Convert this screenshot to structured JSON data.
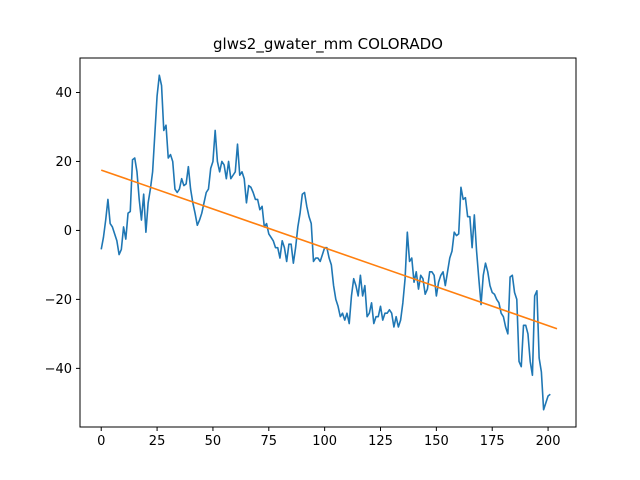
{
  "chart_data": {
    "type": "line",
    "title": "glws2_gwater_mm COLORADO",
    "xlabel": "",
    "ylabel": "",
    "xlim": [
      -9.5,
      212.5
    ],
    "ylim": [
      -57,
      50
    ],
    "xticks": [
      0,
      25,
      50,
      75,
      100,
      125,
      150,
      175,
      200
    ],
    "yticks": [
      -40,
      -20,
      0,
      20,
      40
    ],
    "xtick_labels": [
      "0",
      "25",
      "50",
      "75",
      "100",
      "125",
      "150",
      "175",
      "200"
    ],
    "ytick_labels": [
      "−40",
      "−20",
      "0",
      "20",
      "40"
    ],
    "grid": false,
    "series": [
      {
        "color": "#1f77b4",
        "points": [
          [
            0,
            -5.5
          ],
          [
            1,
            -2
          ],
          [
            2,
            3
          ],
          [
            3,
            9
          ],
          [
            4,
            2
          ],
          [
            5,
            1
          ],
          [
            6,
            -1
          ],
          [
            7,
            -3
          ],
          [
            8,
            -7
          ],
          [
            9,
            -5.5
          ],
          [
            10,
            1
          ],
          [
            11,
            -2.5
          ],
          [
            12,
            5
          ],
          [
            13,
            5.5
          ],
          [
            14,
            20.5
          ],
          [
            15,
            21
          ],
          [
            16,
            17
          ],
          [
            17,
            9
          ],
          [
            18,
            3
          ],
          [
            19,
            10.5
          ],
          [
            20,
            -0.5
          ],
          [
            21,
            8
          ],
          [
            22,
            12
          ],
          [
            23,
            17
          ],
          [
            24,
            28
          ],
          [
            25,
            39
          ],
          [
            26,
            45
          ],
          [
            27,
            42
          ],
          [
            28,
            29
          ],
          [
            29,
            30.5
          ],
          [
            30,
            21
          ],
          [
            31,
            22
          ],
          [
            32,
            20
          ],
          [
            33,
            12
          ],
          [
            34,
            11
          ],
          [
            35,
            12
          ],
          [
            36,
            15
          ],
          [
            37,
            13
          ],
          [
            38,
            13.5
          ],
          [
            39,
            18.5
          ],
          [
            40,
            12
          ],
          [
            41,
            8
          ],
          [
            42,
            5
          ],
          [
            43,
            1.5
          ],
          [
            44,
            3
          ],
          [
            45,
            5
          ],
          [
            46,
            8
          ],
          [
            47,
            11
          ],
          [
            48,
            12
          ],
          [
            49,
            18
          ],
          [
            50,
            20
          ],
          [
            51,
            29
          ],
          [
            52,
            20
          ],
          [
            53,
            17
          ],
          [
            54,
            20
          ],
          [
            55,
            19
          ],
          [
            56,
            15
          ],
          [
            57,
            20
          ],
          [
            58,
            15
          ],
          [
            59,
            16
          ],
          [
            60,
            17
          ],
          [
            61,
            25
          ],
          [
            62,
            16
          ],
          [
            63,
            17
          ],
          [
            64,
            15
          ],
          [
            65,
            8
          ],
          [
            66,
            13
          ],
          [
            67,
            12.5
          ],
          [
            68,
            11
          ],
          [
            69,
            9
          ],
          [
            70,
            9
          ],
          [
            71,
            6
          ],
          [
            72,
            7
          ],
          [
            73,
            1
          ],
          [
            74,
            2
          ],
          [
            75,
            -1
          ],
          [
            76,
            -2
          ],
          [
            77,
            -3
          ],
          [
            78,
            -5
          ],
          [
            79,
            -5
          ],
          [
            80,
            -8
          ],
          [
            81,
            -3
          ],
          [
            82,
            -5
          ],
          [
            83,
            -9
          ],
          [
            84,
            -4
          ],
          [
            85,
            -4
          ],
          [
            86,
            -9.5
          ],
          [
            87,
            -5
          ],
          [
            88,
            1
          ],
          [
            89,
            5
          ],
          [
            90,
            10.5
          ],
          [
            91,
            11
          ],
          [
            92,
            7
          ],
          [
            93,
            4
          ],
          [
            94,
            2
          ],
          [
            95,
            -9
          ],
          [
            96,
            -8
          ],
          [
            97,
            -8
          ],
          [
            98,
            -9
          ],
          [
            99,
            -7
          ],
          [
            100,
            -5
          ],
          [
            101,
            -5
          ],
          [
            102,
            -8
          ],
          [
            103,
            -10
          ],
          [
            104,
            -16
          ],
          [
            105,
            -20
          ],
          [
            106,
            -22
          ],
          [
            107,
            -25
          ],
          [
            108,
            -24
          ],
          [
            109,
            -26
          ],
          [
            110,
            -24
          ],
          [
            111,
            -27
          ],
          [
            112,
            -19
          ],
          [
            113,
            -14
          ],
          [
            114,
            -16
          ],
          [
            115,
            -19
          ],
          [
            116,
            -13
          ],
          [
            117,
            -19
          ],
          [
            118,
            -16
          ],
          [
            119,
            -25
          ],
          [
            120,
            -24
          ],
          [
            121,
            -21
          ],
          [
            122,
            -27
          ],
          [
            123,
            -25
          ],
          [
            124,
            -25
          ],
          [
            125,
            -22
          ],
          [
            126,
            -26
          ],
          [
            127,
            -24
          ],
          [
            128,
            -24
          ],
          [
            129,
            -23
          ],
          [
            130,
            -24
          ],
          [
            131,
            -28
          ],
          [
            132,
            -25
          ],
          [
            133,
            -28
          ],
          [
            134,
            -26
          ],
          [
            135,
            -21
          ],
          [
            136,
            -14
          ],
          [
            137,
            -0.5
          ],
          [
            138,
            -9
          ],
          [
            139,
            -8
          ],
          [
            140,
            -15
          ],
          [
            141,
            -12
          ],
          [
            142,
            -17
          ],
          [
            143,
            -13
          ],
          [
            144,
            -14
          ],
          [
            145,
            -18.5
          ],
          [
            146,
            -17
          ],
          [
            147,
            -12
          ],
          [
            148,
            -12
          ],
          [
            149,
            -13
          ],
          [
            150,
            -19
          ],
          [
            151,
            -15
          ],
          [
            152,
            -13
          ],
          [
            153,
            -12
          ],
          [
            154,
            -16
          ],
          [
            155,
            -12
          ],
          [
            156,
            -8
          ],
          [
            157,
            -6
          ],
          [
            158,
            -0.5
          ],
          [
            159,
            -1.5
          ],
          [
            160,
            -1
          ],
          [
            161,
            12.5
          ],
          [
            162,
            9
          ],
          [
            163,
            9.5
          ],
          [
            164,
            4
          ],
          [
            165,
            4
          ],
          [
            166,
            -5
          ],
          [
            167,
            4.5
          ],
          [
            168,
            -6
          ],
          [
            169,
            -14
          ],
          [
            170,
            -21.5
          ],
          [
            171,
            -13
          ],
          [
            172,
            -9.5
          ],
          [
            173,
            -12
          ],
          [
            174,
            -16
          ],
          [
            175,
            -18
          ],
          [
            176,
            -18.5
          ],
          [
            177,
            -20
          ],
          [
            178,
            -21
          ],
          [
            179,
            -24
          ],
          [
            180,
            -25
          ],
          [
            181,
            -28
          ],
          [
            182,
            -30
          ],
          [
            183,
            -13.5
          ],
          [
            184,
            -13
          ],
          [
            185,
            -18
          ],
          [
            186,
            -20
          ],
          [
            187,
            -38
          ],
          [
            188,
            -39.5
          ],
          [
            189,
            -27.5
          ],
          [
            190,
            -27.5
          ],
          [
            191,
            -30
          ],
          [
            192,
            -38
          ],
          [
            193,
            -42
          ],
          [
            194,
            -19
          ],
          [
            195,
            -17.5
          ],
          [
            196,
            -37
          ],
          [
            197,
            -41
          ],
          [
            198,
            -52
          ],
          [
            199,
            -50
          ],
          [
            200,
            -48
          ],
          [
            201,
            -47.5
          ]
        ]
      },
      {
        "color": "#ff7f0e",
        "points": [
          [
            0,
            17.5
          ],
          [
            204,
            -28.5
          ]
        ]
      }
    ]
  }
}
